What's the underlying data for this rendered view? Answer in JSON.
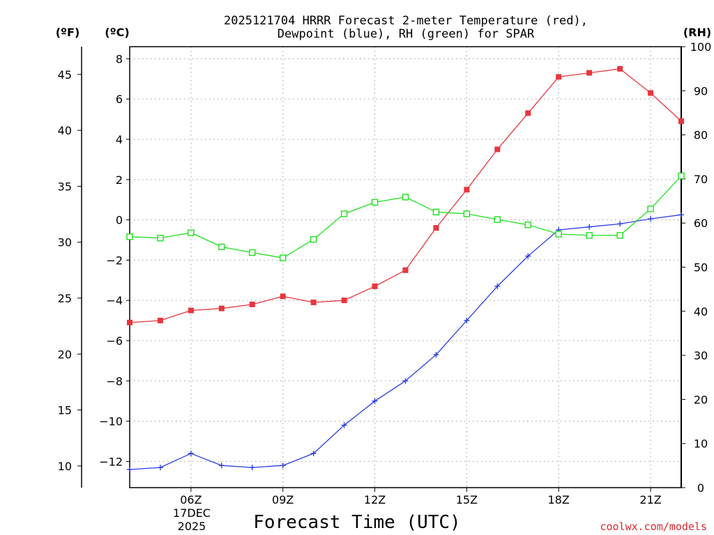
{
  "chart_data": {
    "type": "line",
    "title_line1": "2025121704 HRRR Forecast 2-meter Temperature (red),",
    "title_line2": "Dewpoint (blue), RH (green) for SPAR",
    "xlabel": "Forecast Time (UTC)",
    "credit": "coolwx.com/models",
    "units": {
      "fahrenheit": "(ºF)",
      "celsius": "(ºC)",
      "rh": "(RH)"
    },
    "date_label": [
      "17DEC",
      "2025"
    ],
    "x_hours": [
      4,
      5,
      6,
      7,
      8,
      9,
      10,
      11,
      12,
      13,
      14,
      15,
      16,
      17,
      18,
      19,
      20,
      21,
      22
    ],
    "xlim": [
      4,
      22
    ],
    "x_ticks": [
      {
        "hour": 6,
        "label": "06Z"
      },
      {
        "hour": 9,
        "label": "09Z"
      },
      {
        "hour": 12,
        "label": "12Z"
      },
      {
        "hour": 15,
        "label": "15Z"
      },
      {
        "hour": 18,
        "label": "18Z"
      },
      {
        "hour": 21,
        "label": "21Z"
      }
    ],
    "ylim_celsius": [
      -13.3,
      8.6
    ],
    "ylim_rh": [
      0,
      100
    ],
    "celsius_ticks": [
      8,
      6,
      4,
      2,
      0,
      -2,
      -4,
      -6,
      -8,
      -10,
      -12
    ],
    "celsius_tick_labels": [
      "8",
      "6",
      "4",
      "2",
      "0",
      "−2",
      "−4",
      "−6",
      "−8",
      "−10",
      "−12"
    ],
    "fahrenheit_ticks": [
      45,
      40,
      35,
      30,
      25,
      20,
      15,
      10
    ],
    "rh_ticks": [
      100,
      90,
      80,
      70,
      60,
      50,
      40,
      30,
      20,
      10,
      0
    ],
    "series": [
      {
        "name": "2-meter Temperature",
        "color": "#e8363d",
        "marker": "filled-square",
        "values": [
          -5.1,
          -5.0,
          -4.5,
          -4.4,
          -4.2,
          -3.8,
          -4.1,
          -4.0,
          -3.3,
          -2.5,
          -0.4,
          1.5,
          3.5,
          5.3,
          7.1,
          7.3,
          7.5,
          6.3,
          4.9
        ]
      },
      {
        "name": "Dewpoint",
        "color": "#2a3fe0",
        "marker": "plus",
        "values": [
          -12.4,
          -12.3,
          -11.6,
          -12.2,
          -12.3,
          -12.2,
          -11.6,
          -10.2,
          -9.0,
          -8.0,
          -6.7,
          -5.0,
          -3.3,
          -1.8,
          -0.5,
          -0.35,
          -0.2,
          0.05,
          0.25
        ]
      },
      {
        "name": "RH",
        "color": "#1ee01e",
        "marker": "open-square",
        "axis": "rh",
        "values": [
          56.9,
          56.6,
          57.8,
          54.6,
          53.3,
          52.1,
          56.3,
          62.1,
          64.7,
          65.9,
          62.5,
          62.1,
          60.8,
          59.6,
          57.5,
          57.2,
          57.2,
          63.2,
          70.7
        ]
      }
    ]
  }
}
